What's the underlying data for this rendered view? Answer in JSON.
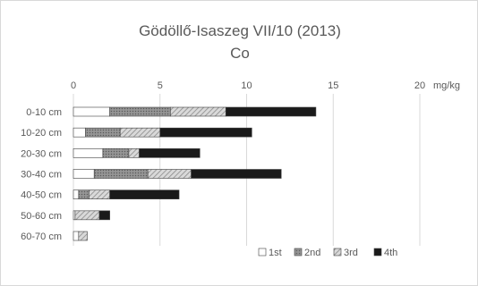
{
  "chart_data": {
    "type": "bar",
    "orientation": "horizontal",
    "stacked": true,
    "title": "Gödöllő-Isaszeg VII/10 (2013)",
    "subtitle": "Co",
    "unit_label": "mg/kg",
    "categories": [
      "0-10 cm",
      "10-20 cm",
      "20-30 cm",
      "30-40 cm",
      "40-50 cm",
      "50-60 cm",
      "60-70 cm"
    ],
    "series": [
      {
        "name": "1st",
        "fill": "#ffffff",
        "pattern": "none",
        "values": [
          2.1,
          0.7,
          1.7,
          1.2,
          0.3,
          0.1,
          0.3
        ]
      },
      {
        "name": "2nd",
        "fill": "#8c8c8c",
        "pattern": "dots",
        "values": [
          3.5,
          2.0,
          1.5,
          3.1,
          0.6,
          0.0,
          0.0
        ]
      },
      {
        "name": "3rd",
        "fill": "#c8c8c8",
        "pattern": "diagonal",
        "values": [
          3.2,
          2.3,
          0.6,
          2.5,
          1.2,
          1.4,
          0.5
        ]
      },
      {
        "name": "4th",
        "fill": "#1a1a1a",
        "pattern": "none",
        "values": [
          5.2,
          5.3,
          3.5,
          5.2,
          4.0,
          0.6,
          0.0
        ]
      }
    ],
    "xlim": [
      0,
      20
    ],
    "x_ticks": [
      0,
      5,
      10,
      15,
      20
    ],
    "x_tick_labels": [
      "0",
      "5",
      "10",
      "15",
      "20"
    ],
    "x_axis_position": "top",
    "grid": true,
    "legend_position": "bottom-right"
  }
}
